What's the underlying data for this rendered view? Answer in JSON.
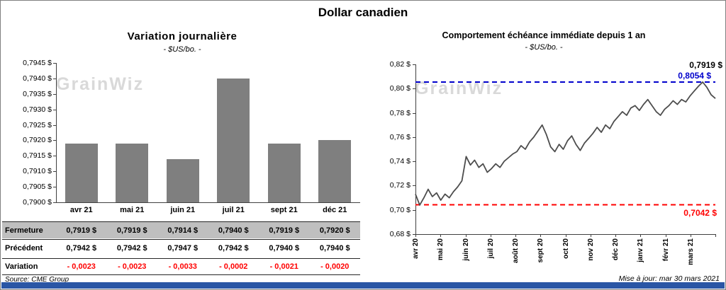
{
  "page": {
    "title": "Dollar canadien",
    "watermark": "GrainWiz",
    "source": "Source: CME Group",
    "updated": "Mise à jour: mar 30 mars 2021",
    "footer_color": "#2A56A5"
  },
  "chart_data": [
    {
      "type": "bar",
      "title": "Variation  journalière",
      "subtitle": "- $US/bo. -",
      "categories": [
        "avr 21",
        "mai 21",
        "juin 21",
        "juil 21",
        "sept 21",
        "déc 21"
      ],
      "values": [
        0.7919,
        0.7919,
        0.7914,
        0.794,
        0.7919,
        0.792
      ],
      "ylim": [
        0.79,
        0.7945
      ],
      "ytick_labels": [
        "0,7945 $",
        "0,7940 $",
        "0,7935 $",
        "0,7930 $",
        "0,7925 $",
        "0,7920 $",
        "0,7915 $",
        "0,7910 $",
        "0,7905 $",
        "0,7900 $"
      ],
      "bar_color": "#7F7F7F",
      "grid": false,
      "table_rows": [
        {
          "label": "Fermeture",
          "bg": "#BFBFBF",
          "values": [
            "0,7919  $",
            "0,7919  $",
            "0,7914  $",
            "0,7940  $",
            "0,7919  $",
            "0,7920  $"
          ]
        },
        {
          "label": "Précédent",
          "values": [
            "0,7942  $",
            "0,7942  $",
            "0,7947  $",
            "0,7942  $",
            "0,7940  $",
            "0,7940  $"
          ]
        },
        {
          "label": "Variation",
          "color": "#FF0000",
          "values": [
            "- 0,0023",
            "- 0,0023",
            "- 0,0033",
            "- 0,0002",
            "- 0,0021",
            "- 0,0020"
          ]
        }
      ]
    },
    {
      "type": "line",
      "title": "Comportement échéance immédiate depuis 1 an",
      "subtitle": "- $US/bo. -",
      "x_labels": [
        "avr 20",
        "mai 20",
        "juin 20",
        "juil 20",
        "août 20",
        "sept 20",
        "oct 20",
        "nov 20",
        "déc 20",
        "janv 21",
        "févr 21",
        "mars 21"
      ],
      "ylim": [
        0.68,
        0.82
      ],
      "ytick_labels": [
        "0,82 $",
        "0,80 $",
        "0,78 $",
        "0,76 $",
        "0,74 $",
        "0,72 $",
        "0,70 $",
        "0,68 $"
      ],
      "line_color": "#4D4D4D",
      "grid": false,
      "values": [
        0.713,
        0.704,
        0.71,
        0.717,
        0.711,
        0.714,
        0.708,
        0.713,
        0.71,
        0.715,
        0.719,
        0.724,
        0.744,
        0.737,
        0.741,
        0.735,
        0.738,
        0.731,
        0.734,
        0.738,
        0.735,
        0.74,
        0.743,
        0.746,
        0.748,
        0.753,
        0.75,
        0.756,
        0.76,
        0.765,
        0.77,
        0.762,
        0.752,
        0.748,
        0.754,
        0.75,
        0.757,
        0.761,
        0.754,
        0.749,
        0.755,
        0.759,
        0.763,
        0.768,
        0.764,
        0.77,
        0.767,
        0.773,
        0.777,
        0.781,
        0.778,
        0.784,
        0.786,
        0.782,
        0.787,
        0.791,
        0.786,
        0.781,
        0.778,
        0.783,
        0.786,
        0.79,
        0.787,
        0.791,
        0.789,
        0.794,
        0.798,
        0.802,
        0.8054,
        0.801,
        0.795,
        0.7919
      ],
      "ref_lines": [
        {
          "value": 0.8054,
          "label": "0,8054 $",
          "color": "#0000CC"
        },
        {
          "value": 0.7042,
          "label": "0,7042 $",
          "color": "#FF0000"
        }
      ],
      "last_point_label": {
        "value": 0.7919,
        "label": "0,7919 $",
        "color": "#000000"
      }
    }
  ]
}
